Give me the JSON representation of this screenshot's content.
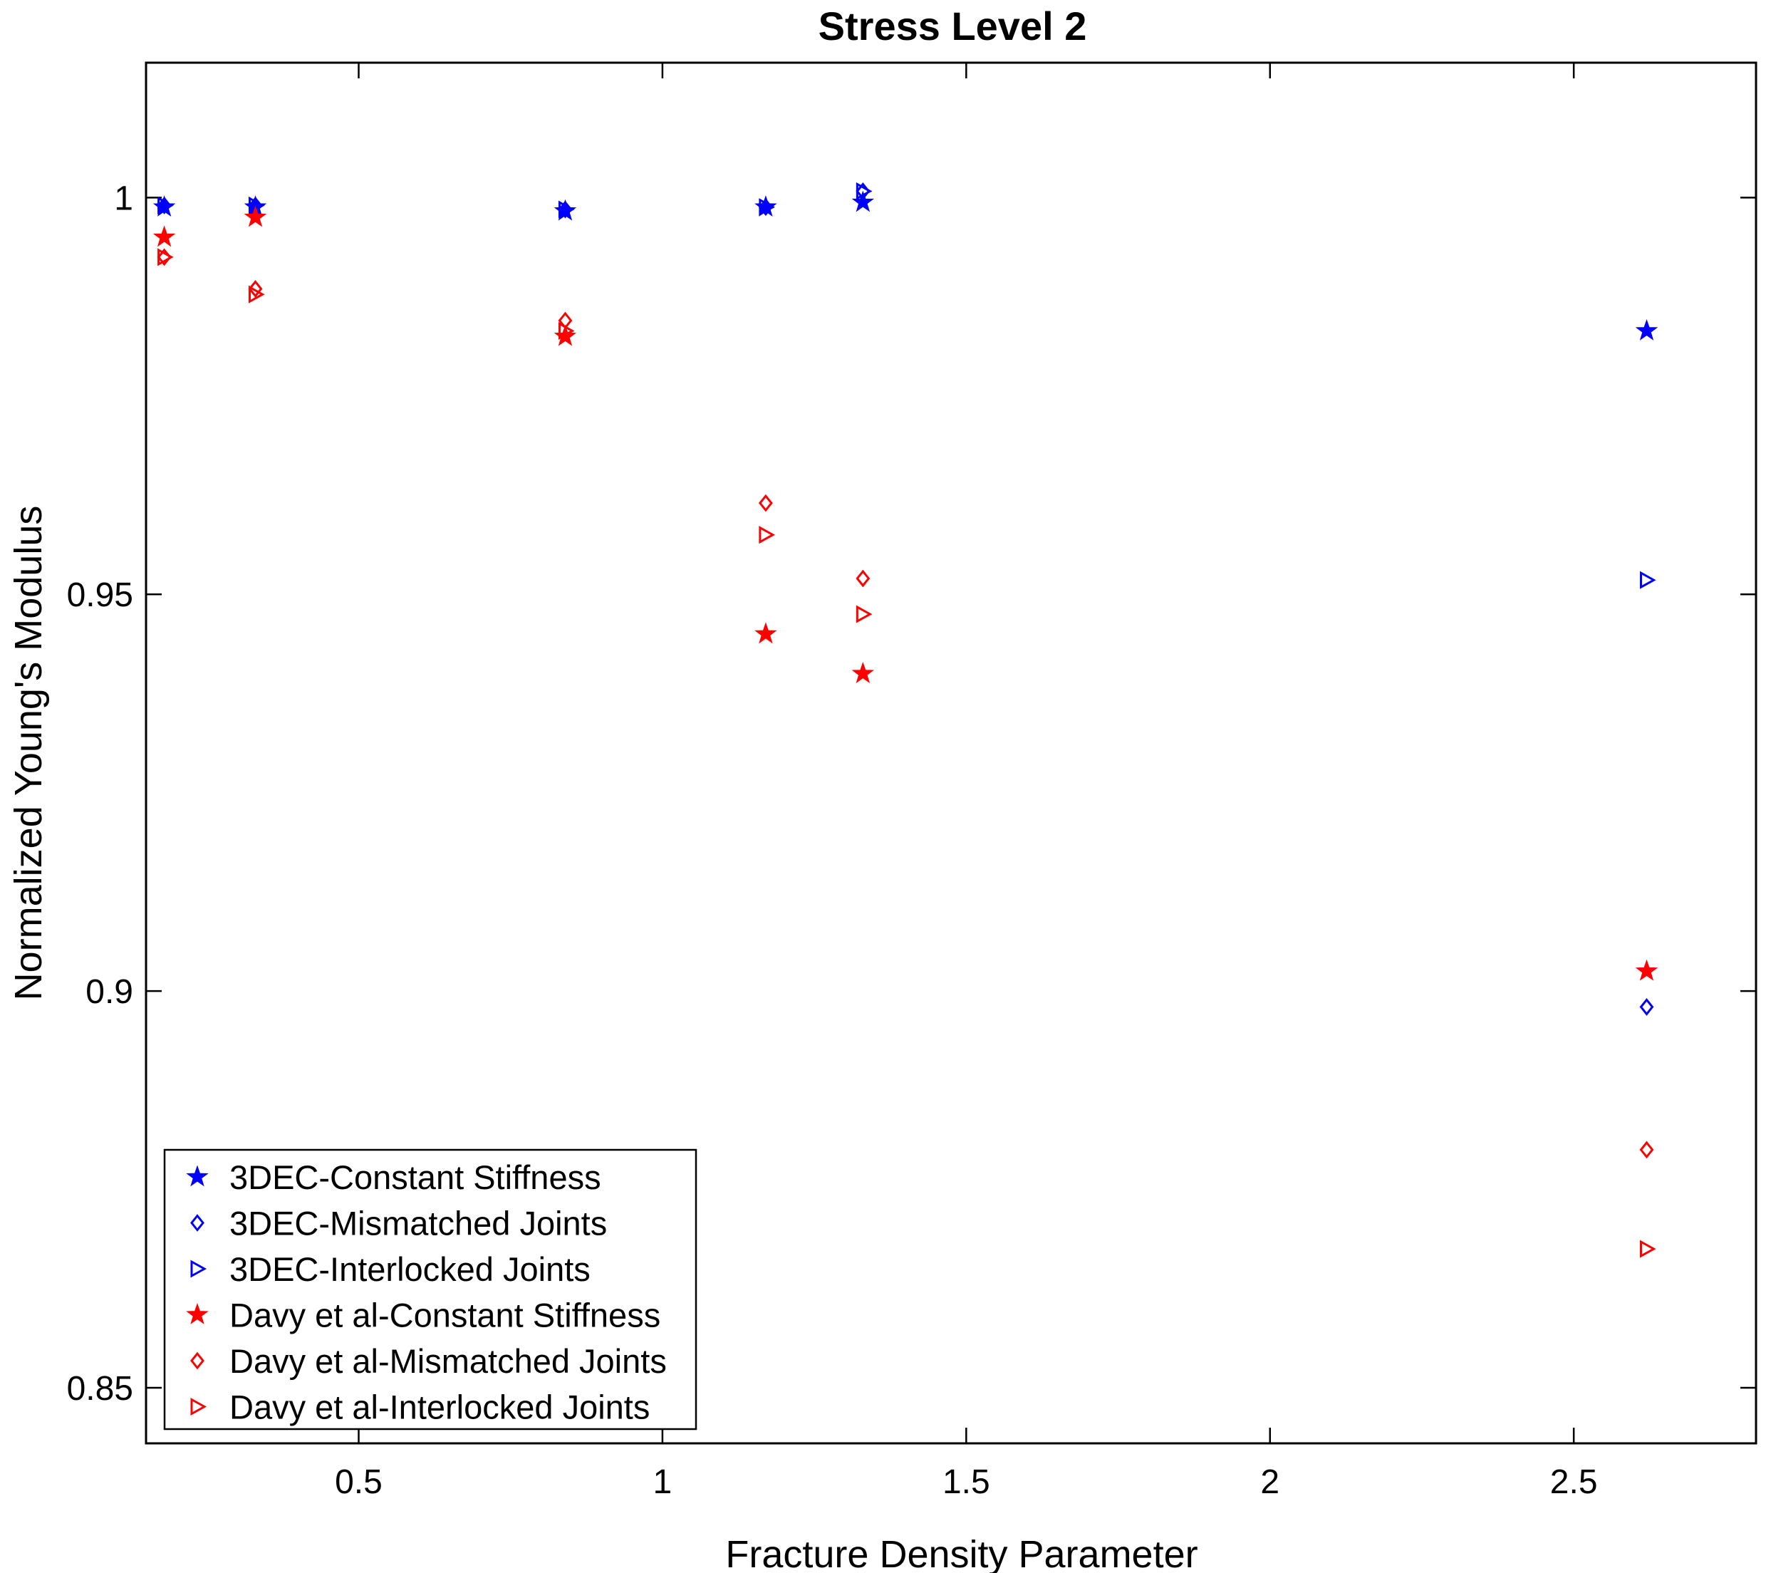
{
  "chart_data": {
    "type": "scatter",
    "title": "Stress Level 2",
    "xlabel": "Fracture Density Parameter",
    "ylabel": "Normalized Young's Modulus",
    "xlim": [
      0.15,
      2.8
    ],
    "ylim": [
      0.843,
      1.017
    ],
    "x_ticks": [
      0.5,
      1,
      1.5,
      2,
      2.5
    ],
    "x_tick_labels": [
      "0.5",
      "1",
      "1.5",
      "2",
      "2.5"
    ],
    "y_ticks": [
      0.85,
      0.9,
      0.95,
      1
    ],
    "y_tick_labels": [
      "0.85",
      "0.9",
      "0.95",
      "1"
    ],
    "grid": false,
    "legend_position": "bottom-left",
    "x": [
      0.18,
      0.33,
      0.84,
      1.17,
      1.33,
      2.62
    ],
    "series": [
      {
        "name": "3DEC-Constant Stiffness",
        "color": "#0000ff",
        "marker": "star",
        "values": [
          0.9988,
          0.9988,
          0.9983,
          0.9988,
          0.9994,
          0.9832
        ]
      },
      {
        "name": "3DEC-Mismatched Joints",
        "color": "#0000ff",
        "marker": "diamond",
        "values": [
          0.999,
          0.999,
          0.9985,
          0.9988,
          1.0008,
          0.898
        ]
      },
      {
        "name": "3DEC-Interlocked Joints",
        "color": "#0000ff",
        "marker": "triangle-right",
        "values": [
          0.999,
          0.999,
          0.9985,
          0.9988,
          1.0008,
          0.9518
        ]
      },
      {
        "name": "Davy et al-Constant Stiffness",
        "color": "#ff0000",
        "marker": "star",
        "values": [
          0.995,
          0.9975,
          0.9825,
          0.945,
          0.94,
          0.9025
        ]
      },
      {
        "name": "Davy et al-Mismatched Joints",
        "color": "#ff0000",
        "marker": "diamond",
        "values": [
          0.9925,
          0.9885,
          0.9845,
          0.9615,
          0.952,
          0.88
        ]
      },
      {
        "name": "Davy et al-Interlocked Joints",
        "color": "#ff0000",
        "marker": "triangle-right",
        "values": [
          0.9925,
          0.9878,
          0.9832,
          0.9575,
          0.9475,
          0.8675
        ]
      }
    ]
  }
}
